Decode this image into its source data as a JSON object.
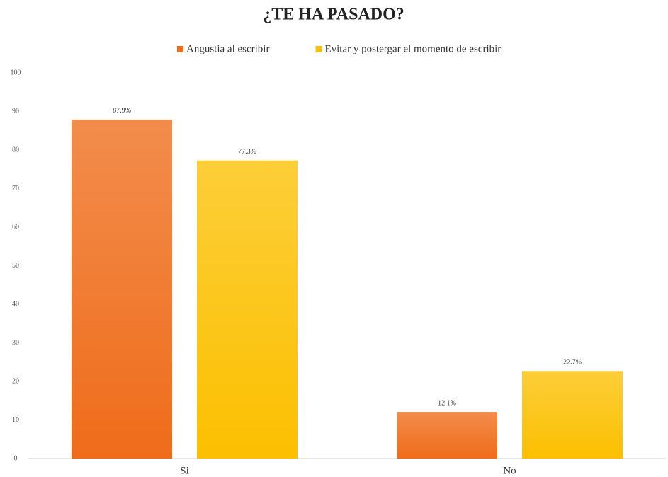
{
  "chart_data": {
    "type": "bar",
    "title": "¿TE HA PASADO?",
    "categories": [
      "Si",
      "No"
    ],
    "series": [
      {
        "name": "Angustia al escribir",
        "color": "#ef6c1a",
        "values": [
          87.9,
          12.1
        ],
        "value_labels": [
          "87.9%",
          "12.1%"
        ]
      },
      {
        "name": "Evitar y postergar el momento de escribir",
        "color": "#fcc000",
        "values": [
          77.3,
          22.7
        ],
        "value_labels": [
          "77.3%",
          "22.7%"
        ]
      }
    ],
    "ylim": [
      0,
      100
    ],
    "yticks": [
      0,
      10,
      20,
      30,
      40,
      50,
      60,
      70,
      80,
      90,
      100
    ],
    "grid": false,
    "legend": "top"
  }
}
